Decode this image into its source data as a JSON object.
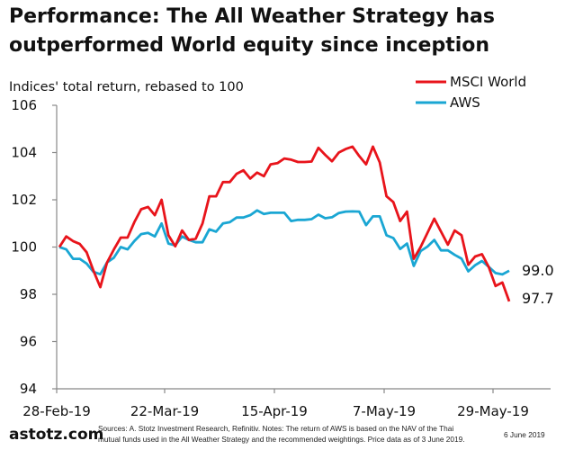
{
  "chart_data": {
    "type": "line",
    "title": "Performance: The All Weather Strategy has outperformed World equity since inception",
    "title_lines": [
      "Performance: The All Weather Strategy has",
      "outperformed World equity since inception"
    ],
    "subtitle": "Indices' total return, rebased to 100",
    "x_tick_labels": [
      "28-Feb-19",
      "22-Mar-19",
      "15-Apr-19",
      "7-May-19",
      "29-May-19"
    ],
    "y_tick_labels": [
      "94",
      "96",
      "98",
      "100",
      "102",
      "104",
      "106"
    ],
    "ylim": [
      94,
      106
    ],
    "grid": false,
    "legend_position": "top-right",
    "series": [
      {
        "name": "MSCI World",
        "color": "#e8141b",
        "end_label": "97.7",
        "values": [
          100.0,
          100.45,
          100.25,
          100.13,
          99.78,
          99.0,
          98.3,
          99.35,
          99.9,
          100.4,
          100.4,
          101.05,
          101.6,
          101.7,
          101.35,
          102.0,
          100.5,
          100.03,
          100.7,
          100.3,
          100.35,
          101.0,
          102.15,
          102.15,
          102.75,
          102.75,
          103.1,
          103.25,
          102.9,
          103.15,
          103.0,
          103.5,
          103.55,
          103.75,
          103.7,
          103.6,
          103.6,
          103.62,
          104.2,
          103.9,
          103.63,
          104.0,
          104.15,
          104.25,
          103.85,
          103.5,
          104.25,
          103.58,
          102.15,
          101.9,
          101.1,
          101.5,
          99.5,
          100.0,
          100.6,
          101.2,
          100.65,
          100.1,
          100.7,
          100.5,
          99.25,
          99.6,
          99.7,
          99.15,
          98.35,
          98.5,
          97.7
        ]
      },
      {
        "name": "AWS",
        "color": "#1aa6d3",
        "end_label": "99.0",
        "values": [
          100.0,
          99.9,
          99.5,
          99.5,
          99.3,
          98.95,
          98.85,
          99.35,
          99.55,
          100.0,
          99.9,
          100.25,
          100.55,
          100.6,
          100.45,
          101.0,
          100.15,
          100.07,
          100.45,
          100.3,
          100.2,
          100.2,
          100.75,
          100.65,
          101.0,
          101.05,
          101.25,
          101.25,
          101.35,
          101.55,
          101.4,
          101.45,
          101.45,
          101.45,
          101.1,
          101.15,
          101.15,
          101.18,
          101.37,
          101.22,
          101.26,
          101.44,
          101.5,
          101.51,
          101.5,
          100.93,
          101.3,
          101.3,
          100.5,
          100.38,
          99.92,
          100.15,
          99.2,
          99.83,
          100.02,
          100.3,
          99.86,
          99.86,
          99.67,
          99.51,
          98.97,
          99.23,
          99.41,
          99.16,
          98.9,
          98.84,
          99.0
        ]
      }
    ]
  },
  "footer": {
    "logo": "astotz.com",
    "source_line1": "Sources: A. Stotz Investment Research, Refinitiv. Notes: The return of AWS is based on the NAV of the Thai",
    "source_line2": "mutual funds used in the All Weather Strategy and the recommended weightings. Price data as of 3 June 2019.",
    "date": "6 June 2019"
  }
}
